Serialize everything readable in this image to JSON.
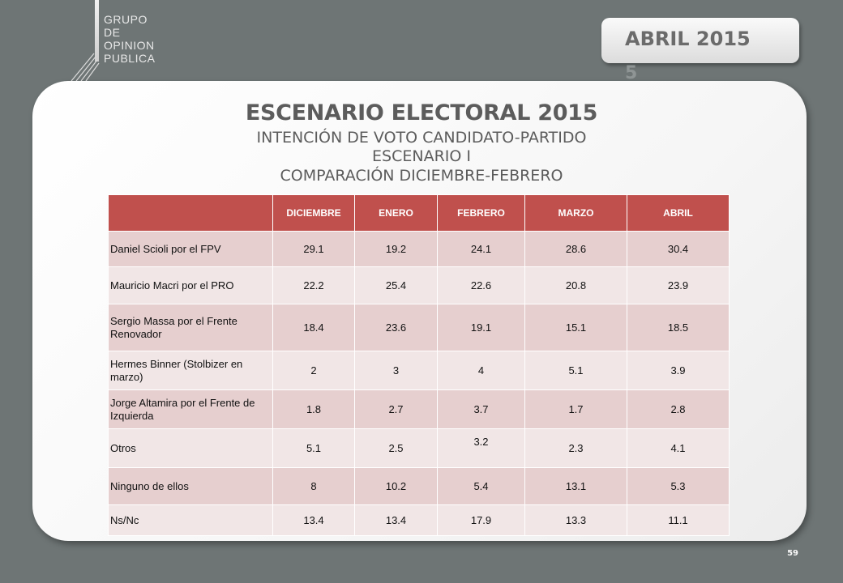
{
  "logo": {
    "lines": [
      "GRUPO",
      "DE",
      "OPINION",
      "PUBLICA"
    ]
  },
  "date_tab": {
    "label": "ABRIL 2015",
    "overflow": "5"
  },
  "title": "ESCENARIO ELECTORAL 2015",
  "subtitles": [
    "INTENCIÓN DE VOTO CANDIDATO-PARTIDO",
    "ESCENARIO I",
    "COMPARACIÓN DICIEMBRE-FEBRERO"
  ],
  "table": {
    "headers": [
      "",
      "DICIEMBRE",
      "ENERO",
      "FEBRERO",
      "MARZO",
      "ABRIL"
    ],
    "rows": [
      {
        "label": "Daniel Scioli por el FPV",
        "values": [
          "29.1",
          "19.2",
          "24.1",
          "28.6",
          "30.4"
        ]
      },
      {
        "label": "Mauricio Macri por el PRO",
        "values": [
          "22.2",
          "25.4",
          "22.6",
          "20.8",
          "23.9"
        ]
      },
      {
        "label": "Sergio Massa por el Frente Renovador",
        "values": [
          "18.4",
          "23.6",
          "19.1",
          "15.1",
          "18.5"
        ]
      },
      {
        "label": "Hermes Binner   (Stolbizer en marzo)",
        "values": [
          "2",
          "3",
          "4",
          "5.1",
          "3.9"
        ]
      },
      {
        "label": "Jorge Altamira por el Frente de Izquierda",
        "values": [
          "1.8",
          "2.7",
          "3.7",
          "1.7",
          "2.8"
        ]
      },
      {
        "label": "Otros",
        "values": [
          "5.1",
          "2.5",
          "3.2",
          "2.3",
          "4.1"
        ]
      },
      {
        "label": "Ninguno de ellos",
        "values": [
          "8",
          "10.2",
          "5.4",
          "13.1",
          "5.3"
        ]
      },
      {
        "label": "Ns/Nc",
        "values": [
          "13.4",
          "13.4",
          "17.9",
          "13.3",
          "11.1"
        ]
      }
    ]
  },
  "page_number": "59",
  "colors": {
    "background": "#6e7575",
    "header_red": "#c0504d",
    "row_dark": "#e6cfcf",
    "row_light": "#f1e6e6"
  }
}
